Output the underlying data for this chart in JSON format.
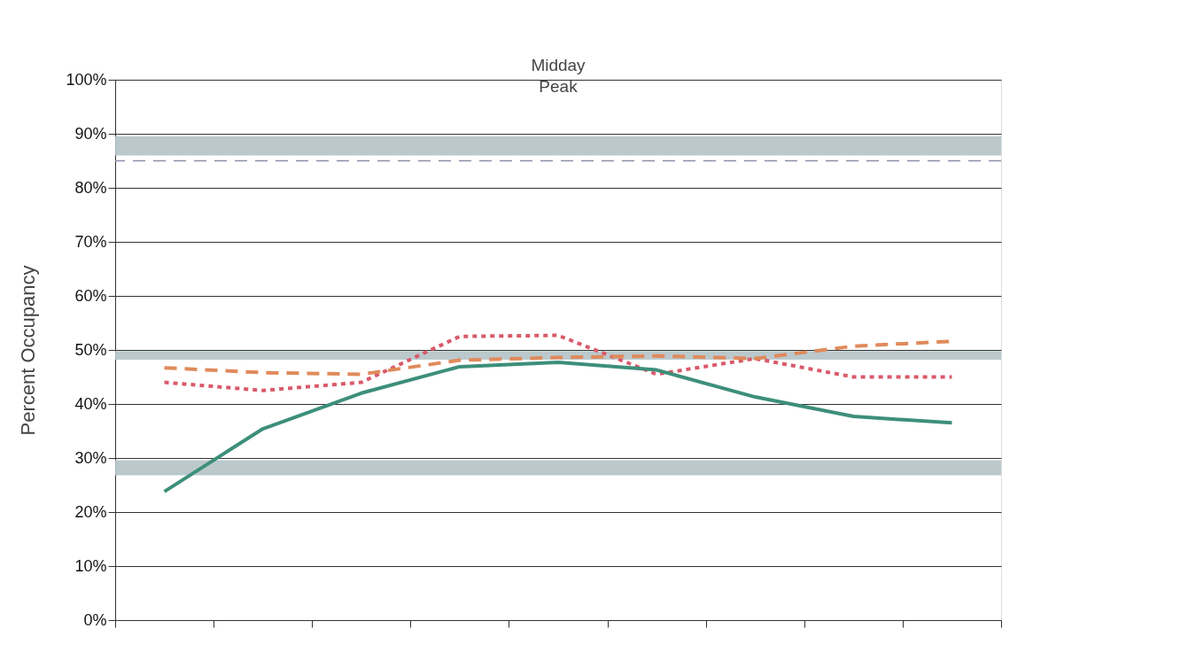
{
  "chart_data": {
    "type": "line",
    "ylabel": "Percent Occupancy",
    "categories": [
      null,
      null,
      null,
      null,
      null,
      null,
      null,
      null,
      null
    ],
    "series": [
      {
        "color": "#d9596a",
        "line_style": "dotted",
        "values": [
          44,
          42.5,
          44,
          52.5,
          52.7,
          45.5,
          48.4,
          45,
          45
        ]
      },
      {
        "color": "#e08a5c",
        "line_style": "dashed",
        "values": [
          46.7,
          45.8,
          45.5,
          48.1,
          48.6,
          48.9,
          48.4,
          50.7,
          51.6
        ]
      },
      {
        "color": "#3d8f7a",
        "line_style": "solid",
        "values": [
          23.8,
          35.4,
          42,
          46.9,
          47.7,
          46.3,
          41.3,
          37.7,
          36.5
        ]
      }
    ],
    "ylim": [
      0,
      100
    ],
    "yticks": [
      {
        "value": 0,
        "label": "0%"
      },
      {
        "value": 10,
        "label": "10%"
      },
      {
        "value": 20,
        "label": "20%"
      },
      {
        "value": 30,
        "label": "30%"
      },
      {
        "value": 40,
        "label": "40%"
      },
      {
        "value": 50,
        "label": "50%"
      },
      {
        "value": 60,
        "label": "60%"
      },
      {
        "value": 70,
        "label": "70%"
      },
      {
        "value": 80,
        "label": "80%"
      },
      {
        "value": 90,
        "label": "90%"
      },
      {
        "value": 100,
        "label": "100%"
      }
    ],
    "grid": "y",
    "annotations": [
      "Midday Peak"
    ],
    "ref_lines": [
      {
        "axis": "y",
        "value": 85,
        "color": "#8a8fa8",
        "line_style": "dashed"
      }
    ],
    "bands": [
      {
        "axis": "y",
        "from": 86,
        "to": 89.5,
        "color": "#b4c3c8"
      },
      {
        "axis": "y",
        "from": 48.2,
        "to": 49.8,
        "color": "#b4c3c8"
      },
      {
        "axis": "y",
        "from": 26.8,
        "to": 29.6,
        "color": "#b4c3c8"
      }
    ]
  }
}
